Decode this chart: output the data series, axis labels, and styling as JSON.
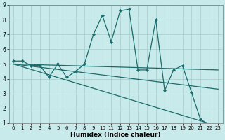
{
  "xlabel": "Humidex (Indice chaleur)",
  "bg_color": "#c8eaea",
  "grid_color": "#aad0d0",
  "line_color": "#1a6b6b",
  "xlim": [
    -0.5,
    23.5
  ],
  "ylim": [
    1,
    9
  ],
  "xticks": [
    0,
    1,
    2,
    3,
    4,
    5,
    6,
    7,
    8,
    9,
    10,
    11,
    12,
    13,
    14,
    15,
    16,
    17,
    18,
    19,
    20,
    21,
    22,
    23
  ],
  "yticks": [
    1,
    2,
    3,
    4,
    5,
    6,
    7,
    8,
    9
  ],
  "lines": [
    {
      "x": [
        0,
        1,
        2,
        3,
        4,
        5,
        6,
        7,
        8,
        9,
        10,
        11,
        12,
        13,
        14,
        15,
        16,
        17,
        18,
        19,
        20,
        21,
        22,
        23
      ],
      "y": [
        5.2,
        5.2,
        4.9,
        4.9,
        4.1,
        5.0,
        4.1,
        4.5,
        5.0,
        7.0,
        8.3,
        6.5,
        8.6,
        8.7,
        4.6,
        4.6,
        8.0,
        3.2,
        4.6,
        4.9,
        3.1,
        1.3,
        0.85,
        0.75
      ],
      "marker": true
    },
    {
      "x": [
        0,
        23
      ],
      "y": [
        5.0,
        4.6
      ],
      "marker": false
    },
    {
      "x": [
        0,
        23
      ],
      "y": [
        5.0,
        3.3
      ],
      "marker": false
    },
    {
      "x": [
        0,
        23
      ],
      "y": [
        5.0,
        0.8
      ],
      "marker": false
    }
  ]
}
